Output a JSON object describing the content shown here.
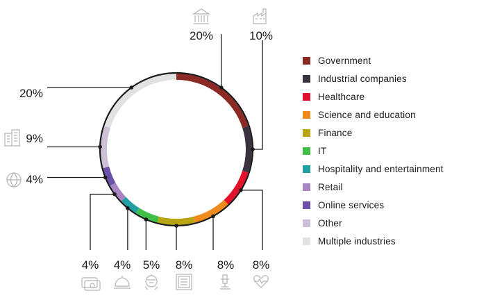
{
  "chart_data": {
    "type": "pie",
    "donut": true,
    "start_angle_deg": 0,
    "legend_position": "right",
    "series": [
      {
        "name": "Government",
        "value": 20,
        "label": "20%",
        "color": "#8b2a24",
        "icon": "bank-building-icon"
      },
      {
        "name": "Industrial companies",
        "value": 10,
        "label": "10%",
        "color": "#3b3240",
        "icon": "factory-icon"
      },
      {
        "name": "Healthcare",
        "value": 8,
        "label": "8%",
        "color": "#e4112c",
        "icon": "heart-pulse-icon"
      },
      {
        "name": "Science and education",
        "value": 8,
        "label": "8%",
        "color": "#ef8a1e",
        "icon": "microscope-icon"
      },
      {
        "name": "Finance",
        "value": 8,
        "label": "8%",
        "color": "#b9a512",
        "icon": "safe-icon"
      },
      {
        "name": "IT",
        "value": 5,
        "label": "5%",
        "color": "#3fbe48",
        "icon": "robot-icon"
      },
      {
        "name": "Hospitality and entertainment",
        "value": 4,
        "label": "4%",
        "color": "#21a0a3",
        "icon": "service-bell-icon"
      },
      {
        "name": "Retail",
        "value": 4,
        "label": "4%",
        "color": "#a884c2",
        "icon": "credit-card-icon"
      },
      {
        "name": "Online services",
        "value": 4,
        "label": "4%",
        "color": "#6a4fa8",
        "icon": "globe-icon"
      },
      {
        "name": "Other",
        "value": 9,
        "label": "9%",
        "color": "#cdbfd6",
        "icon": "office-buildings-icon"
      },
      {
        "name": "Multiple industries",
        "value": 20,
        "label": "20%",
        "color": "#e2e2e2",
        "icon": ""
      }
    ]
  }
}
